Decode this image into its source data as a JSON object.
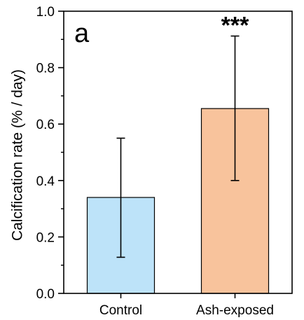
{
  "chart_data": {
    "type": "bar",
    "panel_label": "a",
    "categories": [
      "Control",
      "Ash-exposed"
    ],
    "values": [
      0.34,
      0.655
    ],
    "error_low": [
      0.128,
      0.4
    ],
    "error_high": [
      0.55,
      0.912
    ],
    "bar_colors": [
      "#bde3f9",
      "#f8c39c"
    ],
    "annotations": [
      "",
      "***"
    ],
    "ylabel": "Calcification rate (% / day)",
    "xlabel": "",
    "title": "",
    "ylim": [
      0.0,
      1.0
    ],
    "yticks": [
      0.0,
      0.2,
      0.4,
      0.6,
      0.8,
      1.0
    ],
    "ytick_labels": [
      "0.0",
      "0.2",
      "0.4",
      "0.6",
      "0.8",
      "1.0"
    ],
    "grid": false,
    "legend": "none"
  }
}
